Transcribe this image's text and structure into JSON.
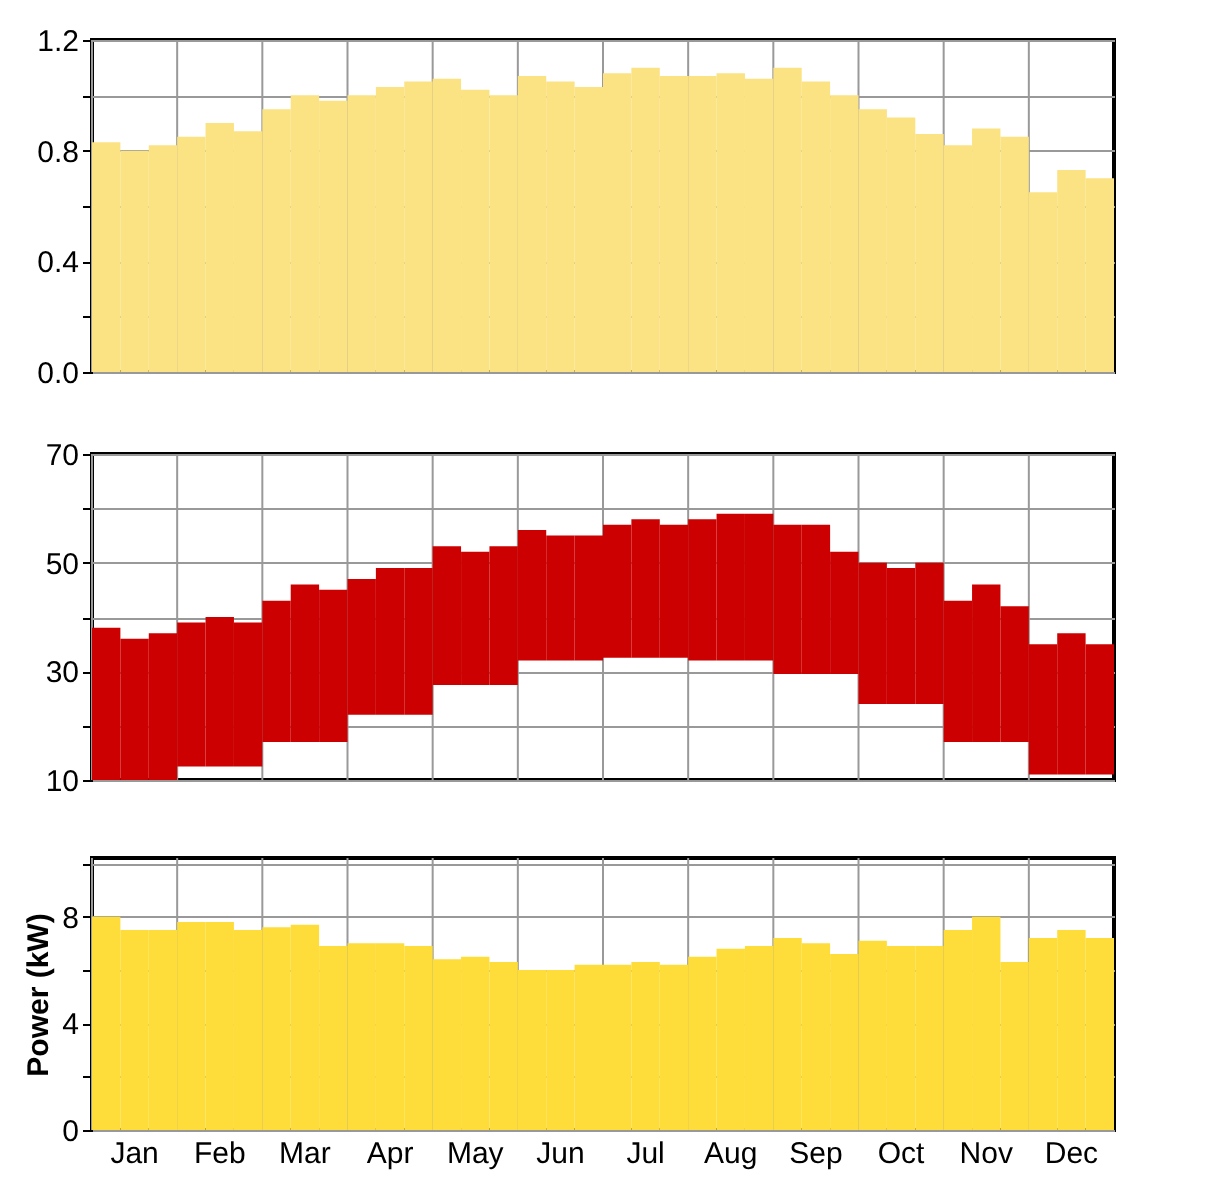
{
  "chart_data": [
    {
      "type": "bar",
      "color": "#fbe283",
      "grid": true,
      "tick_labels": "y",
      "categories": [
        null,
        null,
        null,
        null,
        null,
        null,
        null,
        null,
        null,
        null,
        null,
        null,
        null,
        null,
        null,
        null,
        null,
        null,
        null,
        null,
        null,
        null,
        null,
        null,
        null,
        null,
        null,
        null,
        null,
        null,
        null,
        null,
        null,
        null,
        null,
        null
      ],
      "values": [
        0.83,
        0.8,
        0.82,
        0.85,
        0.9,
        0.87,
        0.95,
        1.0,
        0.98,
        1.0,
        1.03,
        1.05,
        1.06,
        1.02,
        1.0,
        1.07,
        1.05,
        1.03,
        1.08,
        1.1,
        1.07,
        1.07,
        1.08,
        1.06,
        1.1,
        1.05,
        1.0,
        0.95,
        0.92,
        0.86,
        0.82,
        0.88,
        0.85,
        0.65,
        0.73,
        0.7
      ],
      "ylim": [
        0,
        1.2
      ],
      "yticks": [
        {
          "value": 0,
          "label": "0.0"
        },
        {
          "value": 0.2,
          "label": null
        },
        {
          "value": 0.4,
          "label": "0.4"
        },
        {
          "value": 0.6,
          "label": null
        },
        {
          "value": 0.8,
          "label": "0.8"
        },
        {
          "value": 1.0,
          "label": null
        },
        {
          "value": 1.2,
          "label": "1.2"
        }
      ]
    },
    {
      "type": "bar",
      "color": "#cc0000",
      "grid": true,
      "tick_labels": "y",
      "categories": [
        null,
        null,
        null,
        null,
        null,
        null,
        null,
        null,
        null,
        null,
        null,
        null,
        null,
        null,
        null,
        null,
        null,
        null,
        null,
        null,
        null,
        null,
        null,
        null,
        null,
        null,
        null,
        null,
        null,
        null,
        null,
        null,
        null,
        null,
        null,
        null
      ],
      "base": [
        10,
        10,
        10,
        12.5,
        12.5,
        12.5,
        17,
        17,
        17,
        22,
        22,
        22,
        27.5,
        27.5,
        27.5,
        32,
        32,
        32,
        32.5,
        32.5,
        32.5,
        32,
        32,
        32,
        29.5,
        29.5,
        29.5,
        24,
        24,
        24,
        17,
        17,
        17,
        11,
        11,
        11
      ],
      "values": [
        28,
        26,
        27,
        26.5,
        27.5,
        26.5,
        26,
        29,
        28,
        25,
        27,
        27,
        25.5,
        24.5,
        25.5,
        24,
        23,
        23,
        24.5,
        25.5,
        24.5,
        26,
        27,
        27,
        27.5,
        27.5,
        22.5,
        26,
        25,
        26,
        26,
        29,
        25,
        24,
        26,
        24
      ],
      "ylim": [
        10,
        70
      ],
      "yticks": [
        10,
        {
          "value": 20,
          "label": null
        },
        30,
        {
          "value": 40,
          "label": null
        },
        50,
        {
          "value": 60,
          "label": null
        },
        70
      ]
    },
    {
      "type": "bar",
      "color": "#fedd3a",
      "grid": true,
      "ylabel": "Power (kW)",
      "categories": [
        null,
        "Jan",
        null,
        null,
        "Feb",
        null,
        null,
        "Mar",
        null,
        null,
        "Apr",
        null,
        null,
        "May",
        null,
        null,
        "Jun",
        null,
        null,
        "Jul",
        null,
        null,
        "Aug",
        null,
        null,
        "Sep",
        null,
        null,
        "Oct",
        null,
        null,
        "Nov",
        null,
        null,
        "Dec",
        null
      ],
      "values": [
        8.0,
        7.5,
        7.5,
        7.8,
        7.8,
        7.5,
        7.6,
        7.7,
        6.9,
        7.0,
        7.0,
        6.9,
        6.4,
        6.5,
        6.3,
        6.0,
        6.0,
        6.2,
        6.2,
        6.3,
        6.2,
        6.5,
        6.8,
        6.9,
        7.2,
        7.0,
        6.6,
        7.1,
        6.9,
        6.9,
        7.5,
        8.0,
        6.3,
        7.2,
        7.5,
        7.2
      ],
      "ylim": [
        0,
        10.2
      ],
      "yticks": [
        0,
        {
          "value": 2,
          "label": null
        },
        4,
        {
          "value": 6,
          "label": null
        },
        8,
        {
          "value": 10,
          "label": null
        }
      ]
    }
  ]
}
